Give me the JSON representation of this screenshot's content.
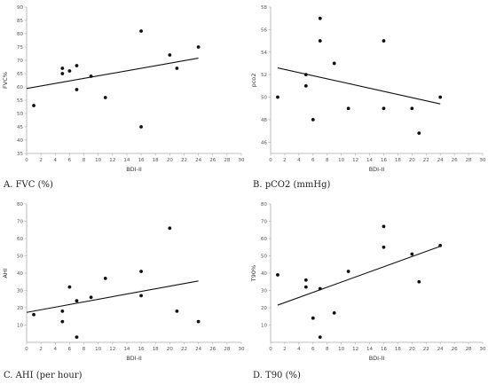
{
  "chart_data": [
    {
      "type": "scatter",
      "caption": "A. FVC (%)",
      "xlabel": "BDI-II",
      "ylabel": "FVC%",
      "xlim": [
        0,
        30
      ],
      "ylim": [
        35,
        90
      ],
      "xticks": [
        0,
        2,
        4,
        6,
        8,
        10,
        12,
        14,
        16,
        18,
        20,
        22,
        24,
        26,
        28,
        30
      ],
      "yticks": [
        35,
        40,
        45,
        50,
        55,
        60,
        65,
        70,
        75,
        80,
        85,
        90
      ],
      "points": [
        [
          1,
          53
        ],
        [
          5,
          65
        ],
        [
          5,
          67
        ],
        [
          6,
          66
        ],
        [
          7,
          68
        ],
        [
          7,
          59
        ],
        [
          9,
          64
        ],
        [
          11,
          56
        ],
        [
          16,
          45
        ],
        [
          16,
          81
        ],
        [
          20,
          72
        ],
        [
          21,
          67
        ],
        [
          24,
          75
        ]
      ],
      "trendline": [
        [
          0,
          59.4
        ],
        [
          24,
          70.8
        ]
      ],
      "grid": false,
      "colors": {
        "marker": "#111111",
        "line": "#111111",
        "axis": "#aaaaaa"
      }
    },
    {
      "type": "scatter",
      "caption": "B. pCO2 (mmHg)",
      "xlabel": "BDI-II",
      "ylabel": "pco2",
      "xlim": [
        0,
        30
      ],
      "ylim": [
        45,
        58
      ],
      "xticks": [
        0,
        2,
        4,
        6,
        8,
        10,
        12,
        14,
        16,
        18,
        20,
        22,
        24,
        26,
        28,
        30
      ],
      "yticks": [
        46,
        48,
        50,
        52,
        54,
        56,
        58
      ],
      "points": [
        [
          1,
          50
        ],
        [
          5,
          52
        ],
        [
          5,
          51
        ],
        [
          6,
          48
        ],
        [
          7,
          57
        ],
        [
          7,
          55
        ],
        [
          9,
          53
        ],
        [
          11,
          49
        ],
        [
          16,
          55
        ],
        [
          16,
          49
        ],
        [
          20,
          49
        ],
        [
          21,
          46.8
        ],
        [
          24,
          50
        ]
      ],
      "trendline": [
        [
          1,
          52.6
        ],
        [
          24,
          49.4
        ]
      ],
      "grid": false,
      "colors": {
        "marker": "#111111",
        "line": "#111111",
        "axis": "#aaaaaa"
      }
    },
    {
      "type": "scatter",
      "caption": "C. AHI (per hour)",
      "xlabel": "BDI-II",
      "ylabel": "AHI",
      "xlim": [
        0,
        30
      ],
      "ylim": [
        0,
        80
      ],
      "xticks": [
        0,
        2,
        4,
        6,
        8,
        10,
        12,
        14,
        16,
        18,
        20,
        22,
        24,
        26,
        28,
        30
      ],
      "yticks": [
        10,
        20,
        30,
        40,
        50,
        60,
        70,
        80
      ],
      "points": [
        [
          1,
          16
        ],
        [
          5,
          18
        ],
        [
          5,
          12
        ],
        [
          6,
          32
        ],
        [
          7,
          24
        ],
        [
          7,
          3
        ],
        [
          9,
          26
        ],
        [
          11,
          37
        ],
        [
          16,
          41
        ],
        [
          16,
          27
        ],
        [
          20,
          66
        ],
        [
          21,
          18
        ],
        [
          24,
          12
        ]
      ],
      "trendline": [
        [
          0,
          17.3
        ],
        [
          24,
          35.5
        ]
      ],
      "grid": false,
      "colors": {
        "marker": "#111111",
        "line": "#111111",
        "axis": "#aaaaaa"
      }
    },
    {
      "type": "scatter",
      "caption": "D. T90 (%)",
      "xlabel": "BDI-II",
      "ylabel": "T90%",
      "xlim": [
        0,
        30
      ],
      "ylim": [
        0,
        80
      ],
      "xticks": [
        0,
        2,
        4,
        6,
        8,
        10,
        12,
        14,
        16,
        18,
        20,
        22,
        24,
        26,
        28,
        30
      ],
      "yticks": [
        10,
        20,
        30,
        40,
        50,
        60,
        70,
        80
      ],
      "points": [
        [
          1,
          39
        ],
        [
          5,
          36
        ],
        [
          5,
          32
        ],
        [
          6,
          14
        ],
        [
          7,
          31
        ],
        [
          7,
          3
        ],
        [
          9,
          17
        ],
        [
          11,
          41
        ],
        [
          16,
          55
        ],
        [
          16,
          67
        ],
        [
          20,
          51
        ],
        [
          21,
          35
        ],
        [
          24,
          56
        ]
      ],
      "trendline": [
        [
          1,
          21.5
        ],
        [
          24,
          55.5
        ]
      ],
      "grid": false,
      "colors": {
        "marker": "#111111",
        "line": "#111111",
        "axis": "#aaaaaa"
      }
    }
  ]
}
